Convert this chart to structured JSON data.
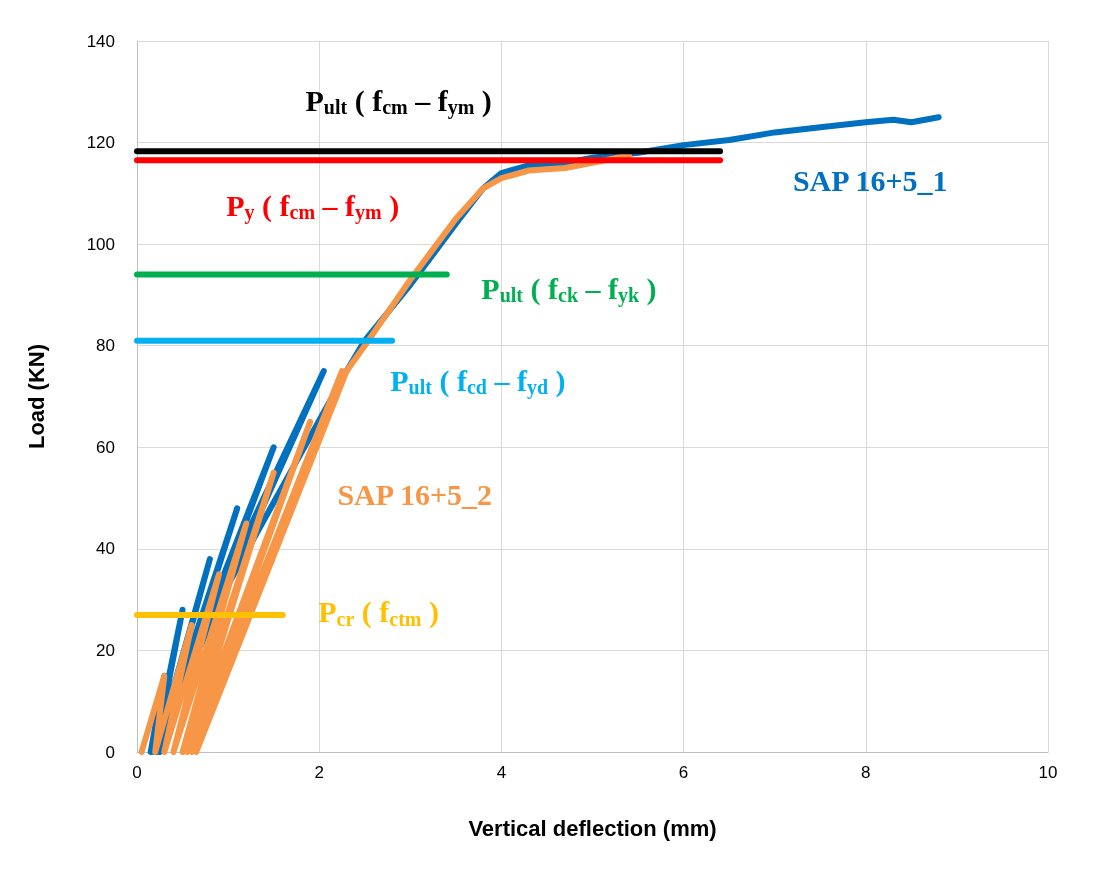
{
  "chart_data": {
    "type": "line",
    "xlabel": "Vertical deflection (mm)",
    "ylabel": "Load (KN)",
    "xlim": [
      0,
      10
    ],
    "xticks": [
      0,
      2,
      4,
      6,
      8,
      10
    ],
    "ylim": [
      0,
      140
    ],
    "yticks": [
      0,
      20,
      40,
      60,
      80,
      100,
      120,
      140
    ],
    "grid": true,
    "legend": false,
    "marker": "none",
    "line_style": "solid",
    "series": [
      {
        "name": "SAP 16+5_1",
        "color": "#0070c0",
        "x": [
          0.15,
          0.3,
          0.18,
          0.5,
          0.2,
          0.8,
          0.22,
          1.1,
          0.25,
          1.5,
          0.3,
          2.05,
          0.6,
          2.3,
          2.5,
          3.0,
          3.5,
          3.8,
          4.0,
          4.3,
          4.7,
          5.0,
          5.5,
          6.0,
          6.5,
          7.0,
          7.5,
          8.0,
          8.3,
          8.5,
          8.8
        ],
        "values": [
          0,
          15,
          0,
          28,
          0,
          38,
          0,
          48,
          0,
          60,
          5,
          75,
          20,
          75,
          81,
          92,
          104,
          111,
          114,
          115.5,
          116,
          117,
          118,
          119.5,
          120.5,
          122,
          123,
          124,
          124.5,
          124,
          125
        ]
      },
      {
        "name": "SAP 16+5_2",
        "color": "#f79646",
        "x": [
          0.05,
          0.3,
          0.2,
          0.6,
          0.3,
          0.9,
          0.4,
          1.2,
          0.5,
          1.5,
          0.55,
          1.9,
          0.6,
          2.25,
          0.65,
          2.3,
          2.5,
          3.0,
          3.5,
          3.8,
          4.0,
          4.3,
          4.7,
          5.0,
          5.4
        ],
        "values": [
          0,
          15,
          0,
          25,
          0,
          35,
          0,
          45,
          0,
          55,
          0,
          65,
          0,
          75,
          0,
          75,
          80,
          93,
          105,
          111,
          113,
          114.5,
          115,
          116,
          117.5
        ]
      },
      {
        "name": "P$_{ult}$ ( f$_{cm}$ – f$_{ym}$ )",
        "color": "#000000",
        "x": [
          0,
          6.4
        ],
        "values": [
          118.3,
          118.3
        ]
      },
      {
        "name": "P$_{y}$ ( f$_{cm}$ – f$_{ym}$ )",
        "color": "#ff0000",
        "x": [
          0,
          6.4
        ],
        "values": [
          116.5,
          116.5
        ]
      },
      {
        "name": "P$_{ult}$ ( f$_{ck}$ – f$_{yk}$ )",
        "color": "#00b050",
        "x": [
          0,
          3.4
        ],
        "values": [
          94,
          94
        ]
      },
      {
        "name": "P$_{ult}$ ( f$_{cd}$ – f$_{yd}$ )",
        "color": "#00b0f0",
        "x": [
          0,
          2.8
        ],
        "values": [
          81,
          81
        ]
      },
      {
        "name": "P$_{cr}$ ( f$_{ctm}$ )",
        "color": "#ffc000",
        "x": [
          0,
          1.6
        ],
        "values": [
          27,
          27
        ]
      }
    ]
  }
}
